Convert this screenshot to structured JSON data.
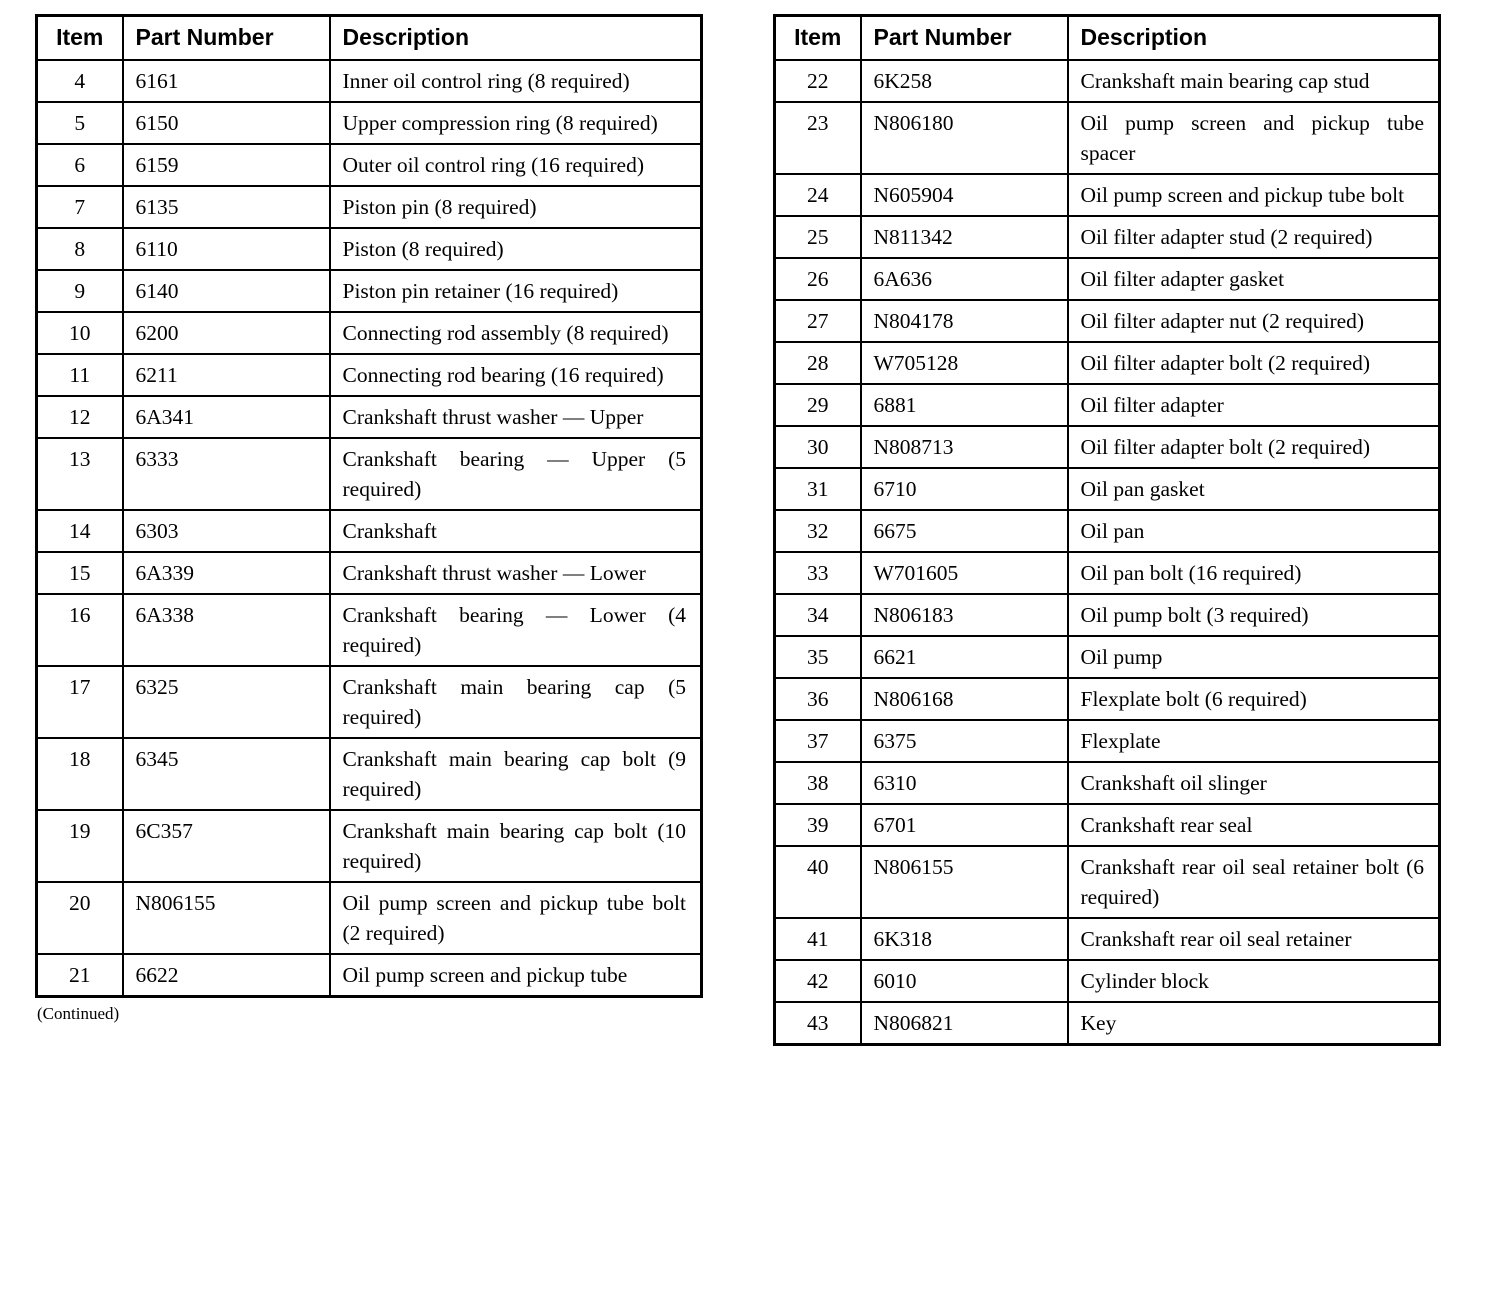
{
  "page": {
    "continued_note": "(Continued)"
  },
  "tables": [
    {
      "name": "parts-table-left",
      "headers": [
        "Item",
        "Part Number",
        "Description"
      ],
      "rows": [
        {
          "item": "4",
          "part": "6161",
          "desc": "Inner oil control ring (8 required)"
        },
        {
          "item": "5",
          "part": "6150",
          "desc": "Upper compression ring (8 required)"
        },
        {
          "item": "6",
          "part": "6159",
          "desc": "Outer oil control ring (16 required)"
        },
        {
          "item": "7",
          "part": "6135",
          "desc": "Piston pin (8 required)"
        },
        {
          "item": "8",
          "part": "6110",
          "desc": "Piston (8 required)"
        },
        {
          "item": "9",
          "part": "6140",
          "desc": "Piston pin retainer (16 required)"
        },
        {
          "item": "10",
          "part": "6200",
          "desc": "Connecting rod assembly (8 required)"
        },
        {
          "item": "11",
          "part": "6211",
          "desc": "Connecting rod bearing (16 required)"
        },
        {
          "item": "12",
          "part": "6A341",
          "desc": "Crankshaft thrust washer — Upper"
        },
        {
          "item": "13",
          "part": "6333",
          "desc": "Crankshaft bearing — Upper (5 required)"
        },
        {
          "item": "14",
          "part": "6303",
          "desc": "Crankshaft"
        },
        {
          "item": "15",
          "part": "6A339",
          "desc": "Crankshaft thrust washer — Lower"
        },
        {
          "item": "16",
          "part": "6A338",
          "desc": "Crankshaft bearing — Lower (4 required)"
        },
        {
          "item": "17",
          "part": "6325",
          "desc": "Crankshaft main bearing cap (5 required)"
        },
        {
          "item": "18",
          "part": "6345",
          "desc": "Crankshaft main bearing cap bolt (9 required)"
        },
        {
          "item": "19",
          "part": "6C357",
          "desc": "Crankshaft main bearing cap bolt (10 required)"
        },
        {
          "item": "20",
          "part": "N806155",
          "desc": "Oil pump screen and pickup tube bolt (2 required)"
        },
        {
          "item": "21",
          "part": "6622",
          "desc": "Oil pump screen and pickup tube"
        }
      ]
    },
    {
      "name": "parts-table-right",
      "headers": [
        "Item",
        "Part Number",
        "Description"
      ],
      "rows": [
        {
          "item": "22",
          "part": "6K258",
          "desc": "Crankshaft main bearing cap stud"
        },
        {
          "item": "23",
          "part": "N806180",
          "desc": "Oil pump screen and pickup tube spacer"
        },
        {
          "item": "24",
          "part": "N605904",
          "desc": "Oil pump screen and pickup tube bolt"
        },
        {
          "item": "25",
          "part": "N811342",
          "desc": "Oil filter adapter stud (2 required)"
        },
        {
          "item": "26",
          "part": "6A636",
          "desc": "Oil filter adapter gasket"
        },
        {
          "item": "27",
          "part": "N804178",
          "desc": "Oil filter adapter nut (2 required)"
        },
        {
          "item": "28",
          "part": "W705128",
          "desc": "Oil filter adapter bolt (2 required)"
        },
        {
          "item": "29",
          "part": "6881",
          "desc": "Oil filter adapter"
        },
        {
          "item": "30",
          "part": "N808713",
          "desc": "Oil filter adapter bolt (2 required)"
        },
        {
          "item": "31",
          "part": "6710",
          "desc": "Oil pan gasket"
        },
        {
          "item": "32",
          "part": "6675",
          "desc": "Oil pan"
        },
        {
          "item": "33",
          "part": "W701605",
          "desc": "Oil pan bolt (16 required)"
        },
        {
          "item": "34",
          "part": "N806183",
          "desc": "Oil pump bolt (3 required)"
        },
        {
          "item": "35",
          "part": "6621",
          "desc": "Oil pump"
        },
        {
          "item": "36",
          "part": "N806168",
          "desc": "Flexplate bolt (6 required)"
        },
        {
          "item": "37",
          "part": "6375",
          "desc": "Flexplate"
        },
        {
          "item": "38",
          "part": "6310",
          "desc": "Crankshaft oil slinger"
        },
        {
          "item": "39",
          "part": "6701",
          "desc": "Crankshaft rear seal"
        },
        {
          "item": "40",
          "part": "N806155",
          "desc": "Crankshaft rear oil seal retainer bolt (6 required)"
        },
        {
          "item": "41",
          "part": "6K318",
          "desc": "Crankshaft rear oil seal retainer"
        },
        {
          "item": "42",
          "part": "6010",
          "desc": "Cylinder block"
        },
        {
          "item": "43",
          "part": "N806821",
          "desc": "Key"
        }
      ]
    }
  ]
}
